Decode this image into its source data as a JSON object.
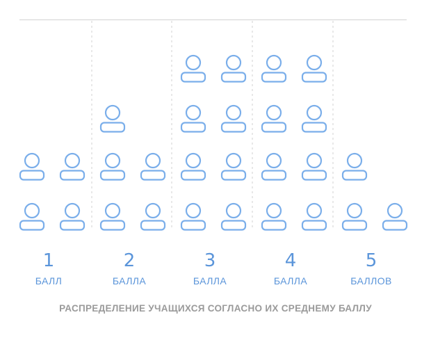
{
  "chart_data": {
    "type": "pictogram",
    "categories": [
      "1",
      "2",
      "3",
      "4",
      "5"
    ],
    "category_units": [
      "БАЛЛ",
      "БАЛЛА",
      "БАЛЛА",
      "БАЛЛА",
      "БАЛЛОВ"
    ],
    "values": [
      4,
      5,
      8,
      8,
      3
    ],
    "icon": "person-icon",
    "grid": "dashed vertical separators",
    "title": "РАСПРЕДЕЛЕНИЕ УЧАЩИХСЯ СОГЛАСНО ИХ СРЕДНЕМУ БАЛЛУ"
  },
  "colors": {
    "icon_stroke": "#7aaeea",
    "number": "#5b95da",
    "unit": "#5b95da",
    "title": "#9a9a9a",
    "rule": "#d9d9d9"
  }
}
